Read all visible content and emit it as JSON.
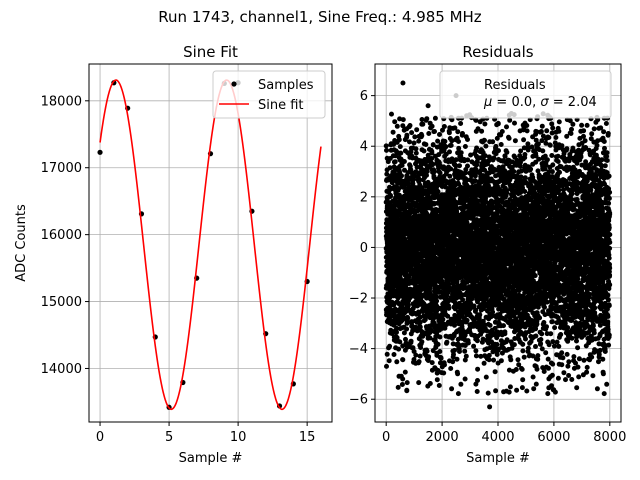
{
  "figure": {
    "suptitle": "Run 1743, channel1, Sine Freq.: 4.985 MHz"
  },
  "chart_data": [
    {
      "type": "scatter",
      "title": "Sine Fit",
      "xlabel": "Sample #",
      "ylabel": "ADC Counts",
      "xlim": [
        -0.8,
        16.8
      ],
      "ylim": [
        13200,
        18550
      ],
      "xticks": [
        0,
        5,
        10,
        15
      ],
      "yticks": [
        14000,
        15000,
        16000,
        17000,
        18000
      ],
      "grid": true,
      "legend": {
        "placement": "top-right",
        "entries": [
          "Samples",
          "Sine fit"
        ]
      },
      "series": [
        {
          "name": "Samples",
          "kind": "points",
          "color": "#000000",
          "x": [
            0,
            1,
            2,
            3,
            4,
            5,
            6,
            7,
            8,
            9,
            10,
            11,
            12,
            13,
            14,
            15
          ],
          "y": [
            17230,
            18270,
            17890,
            16310,
            14470,
            13420,
            13790,
            15350,
            17210,
            18260,
            18270,
            16350,
            14520,
            13440,
            13770,
            15300
          ]
        },
        {
          "name": "Sine fit",
          "kind": "line",
          "color": "#ff0000",
          "model": {
            "offset": 15850,
            "amplitude": 2460,
            "period_samples": 8.02,
            "phase_sample": 1.15,
            "x_range": [
              0,
              16
            ]
          }
        }
      ]
    },
    {
      "type": "scatter",
      "title": "Residuals",
      "xlabel": "Sample #",
      "ylabel": "",
      "xlim": [
        -400,
        8400
      ],
      "ylim": [
        -6.9,
        7.25
      ],
      "xticks": [
        0,
        2000,
        4000,
        6000,
        8000
      ],
      "yticks": [
        -6,
        -4,
        -2,
        0,
        2,
        4,
        6
      ],
      "grid": true,
      "legend": {
        "placement": "top-right",
        "entries": [
          "Residuals",
          "$\\mu$ = 0.0, $\\sigma$ = 2.04"
        ]
      },
      "series": [
        {
          "name": "Residuals",
          "kind": "points",
          "color": "#000000",
          "count": 8000,
          "mean": 0.0,
          "sigma": 2.04,
          "x_range": [
            0,
            7999
          ],
          "highlighted_points": {
            "x": [
              600,
              2500,
              1500,
              3700
            ],
            "y": [
              6.5,
              6.0,
              5.6,
              -6.3
            ]
          }
        }
      ]
    }
  ]
}
